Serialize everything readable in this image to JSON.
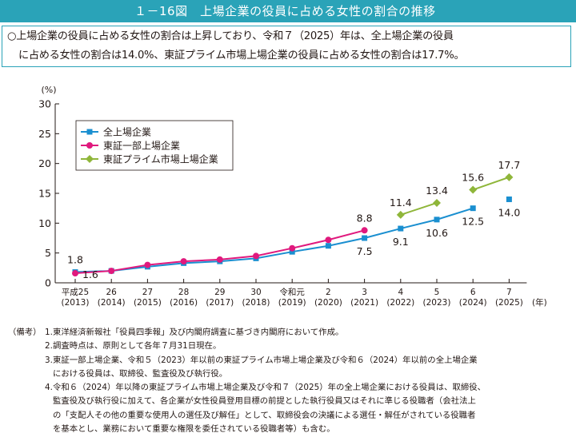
{
  "header": {
    "title": "１－16図　上場企業の役員に占める女性の割合の推移"
  },
  "summary": {
    "line1": "○上場企業の役員に占める女性の割合は上昇しており、令和７（2025）年は、全上場企業の役員",
    "line2": "に占める女性の割合は14.0%、東証プライム市場上場企業の役員に占める女性の割合は17.7%。"
  },
  "chart_data": {
    "type": "line",
    "x_labels": [
      [
        "平成25",
        "(2013)"
      ],
      [
        "26",
        "(2014)"
      ],
      [
        "27",
        "(2015)"
      ],
      [
        "28",
        "(2016)"
      ],
      [
        "29",
        "(2017)"
      ],
      [
        "30",
        "(2018)"
      ],
      [
        "令和元",
        "(2019)"
      ],
      [
        "2",
        "(2020)"
      ],
      [
        "3",
        "(2021)"
      ],
      [
        "4",
        "(2022)"
      ],
      [
        "5",
        "(2023)"
      ],
      [
        "6",
        "(2024)"
      ],
      [
        "7",
        "(2025)"
      ]
    ],
    "x_unit": "(年)",
    "y_unit": "(%)",
    "ylim": [
      0,
      30
    ],
    "yticks": [
      0,
      5,
      10,
      15,
      20,
      25,
      30
    ],
    "grid": false,
    "legend_position": "top-left",
    "series": [
      {
        "name": "全上場企業",
        "color": "#1a8fd0",
        "marker": "square",
        "values": [
          1.8,
          2.0,
          2.7,
          3.3,
          3.6,
          4.1,
          5.2,
          6.2,
          7.5,
          9.1,
          10.6,
          12.5,
          14.0
        ],
        "connected_until_index": 11
      },
      {
        "name": "東証一部上場企業",
        "color": "#e0197d",
        "marker": "circle",
        "values": [
          1.6,
          2.0,
          3.0,
          3.6,
          3.9,
          4.5,
          5.8,
          7.2,
          8.8,
          null,
          null,
          null,
          null
        ]
      },
      {
        "name": "東証プライム市場上場企業",
        "color": "#8fb63a",
        "marker": "diamond",
        "values": [
          null,
          null,
          null,
          null,
          null,
          null,
          null,
          null,
          null,
          11.4,
          13.4,
          15.6,
          17.7
        ],
        "segments": [
          [
            9,
            10
          ],
          [
            11,
            12
          ]
        ]
      }
    ],
    "data_labels": [
      {
        "series": 0,
        "index": 0,
        "text": "1.8",
        "pos": "above"
      },
      {
        "series": 1,
        "index": 0,
        "text": "1.6",
        "pos": "right"
      },
      {
        "series": 1,
        "index": 8,
        "text": "8.8",
        "pos": "above"
      },
      {
        "series": 0,
        "index": 8,
        "text": "7.5",
        "pos": "below"
      },
      {
        "series": 0,
        "index": 9,
        "text": "9.1",
        "pos": "below"
      },
      {
        "series": 0,
        "index": 10,
        "text": "10.6",
        "pos": "below"
      },
      {
        "series": 0,
        "index": 11,
        "text": "12.5",
        "pos": "below"
      },
      {
        "series": 0,
        "index": 12,
        "text": "14.0",
        "pos": "below"
      },
      {
        "series": 2,
        "index": 9,
        "text": "11.4",
        "pos": "above"
      },
      {
        "series": 2,
        "index": 10,
        "text": "13.4",
        "pos": "above"
      },
      {
        "series": 2,
        "index": 11,
        "text": "15.6",
        "pos": "above"
      },
      {
        "series": 2,
        "index": 12,
        "text": "17.7",
        "pos": "above"
      }
    ]
  },
  "notes": {
    "prefix": "（備考）",
    "items": [
      {
        "num": "1.",
        "lines": [
          "東洋経済新報社「役員四季報」及び内閣府調査に基づき内閣府において作成。"
        ]
      },
      {
        "num": "2.",
        "lines": [
          "調査時点は、原則として各年７月31日現在。"
        ]
      },
      {
        "num": "3.",
        "lines": [
          "東証一部上場企業、令和５（2023）年以前の東証プライム市場上場企業及び令和６（2024）年以前の全上場企業",
          "における役員は、取締役、監査役及び執行役。"
        ]
      },
      {
        "num": "4.",
        "lines": [
          "令和６（2024）年以降の東証プライム市場上場企業及び令和７（2025）年の全上場企業における役員は、取締役、",
          "監査役及び執行役に加えて、各企業が女性役員登用目標の前提とした執行役員又はそれに準じる役職者（会社法上",
          "の「支配人その他の重要な使用人の選任及び解任」として、取締役会の決議による選任・解任がされている役職者",
          "を基本とし、業務において重要な権限を委任されている役職者等）も含む。"
        ]
      }
    ]
  }
}
